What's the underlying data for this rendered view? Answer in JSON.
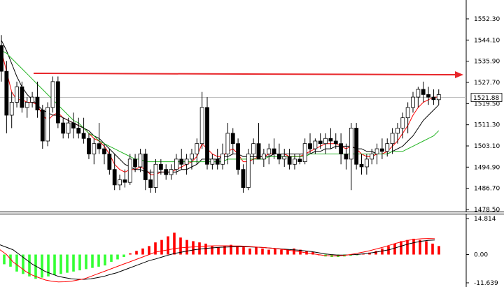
{
  "price_chart": {
    "current_price": "1521.88",
    "price_axis_ticks": [
      "1552.30",
      "1544.10",
      "1535.90",
      "1527.70",
      "1519.50",
      "1511.30",
      "1503.10",
      "1494.90",
      "1486.70",
      "1478.50"
    ],
    "resistance_arrow_color": "#e8262a",
    "colors": {
      "background": "#ffffff",
      "candle_outline": "#000000",
      "candle_up_fill": "#ffffff",
      "candle_down_fill": "#000000",
      "ma_fast": "#ff0000",
      "ma_mid": "#000000",
      "ma_slow": "#22b422",
      "current_price_line": "#c0c0c0"
    }
  },
  "indicator": {
    "axis_ticks": [
      "14.814",
      "0.00",
      "-11.639"
    ],
    "colors": {
      "hist_negative": "#33ff33",
      "hist_positive": "#ff0000",
      "signal_line": "#000000",
      "main_line": "#ff0000"
    }
  },
  "chart_data": [
    {
      "type": "candlestick",
      "title": "",
      "ylim": [
        1478.5,
        1556
      ],
      "ytick_labels": [
        "1552.30",
        "1544.10",
        "1535.90",
        "1527.70",
        "1519.50",
        "1511.30",
        "1503.10",
        "1494.90",
        "1486.70",
        "1478.50"
      ],
      "series": [
        {
          "kind": "ohlc",
          "values": [
            [
              1542,
              1546,
              1528,
              1532
            ],
            [
              1532,
              1536,
              1508,
              1515
            ],
            [
              1515,
              1524,
              1510,
              1520
            ],
            [
              1520,
              1528,
              1518,
              1526
            ],
            [
              1526,
              1528,
              1516,
              1518
            ],
            [
              1518,
              1522,
              1514,
              1520
            ],
            [
              1520,
              1524,
              1518,
              1522
            ],
            [
              1522,
              1528,
              1514,
              1517
            ],
            [
              1517,
              1519,
              1502,
              1505
            ],
            [
              1505,
              1520,
              1503,
              1518
            ],
            [
              1518,
              1530,
              1516,
              1528
            ],
            [
              1528,
              1530,
              1510,
              1512
            ],
            [
              1512,
              1514,
              1506,
              1508
            ],
            [
              1508,
              1514,
              1506,
              1512
            ],
            [
              1512,
              1516,
              1506,
              1510
            ],
            [
              1510,
              1514,
              1506,
              1508
            ],
            [
              1508,
              1514,
              1504,
              1506
            ],
            [
              1506,
              1508,
              1498,
              1500
            ],
            [
              1500,
              1506,
              1496,
              1504
            ],
            [
              1504,
              1512,
              1500,
              1502
            ],
            [
              1502,
              1504,
              1496,
              1500
            ],
            [
              1500,
              1502,
              1492,
              1494
            ],
            [
              1494,
              1500,
              1486,
              1488
            ],
            [
              1488,
              1492,
              1486,
              1490
            ],
            [
              1490,
              1494,
              1487,
              1489
            ],
            [
              1489,
              1500,
              1488,
              1498
            ],
            [
              1498,
              1500,
              1493,
              1495
            ],
            [
              1495,
              1502,
              1493,
              1500
            ],
            [
              1500,
              1502,
              1486,
              1490
            ],
            [
              1490,
              1494,
              1485,
              1487
            ],
            [
              1487,
              1498,
              1485,
              1496
            ],
            [
              1496,
              1498,
              1492,
              1494
            ],
            [
              1494,
              1496,
              1490,
              1492
            ],
            [
              1492,
              1496,
              1490,
              1494
            ],
            [
              1494,
              1500,
              1492,
              1498
            ],
            [
              1498,
              1502,
              1494,
              1496
            ],
            [
              1496,
              1500,
              1492,
              1498
            ],
            [
              1498,
              1502,
              1494,
              1500
            ],
            [
              1500,
              1506,
              1496,
              1504
            ],
            [
              1504,
              1524,
              1502,
              1518
            ],
            [
              1518,
              1522,
              1494,
              1496
            ],
            [
              1496,
              1500,
              1494,
              1498
            ],
            [
              1498,
              1502,
              1494,
              1496
            ],
            [
              1496,
              1504,
              1494,
              1500
            ],
            [
              1500,
              1512,
              1496,
              1508
            ],
            [
              1508,
              1510,
              1500,
              1504
            ],
            [
              1504,
              1506,
              1492,
              1494
            ],
            [
              1494,
              1496,
              1485,
              1487
            ],
            [
              1487,
              1502,
              1486,
              1500
            ],
            [
              1500,
              1506,
              1496,
              1504
            ],
            [
              1504,
              1512,
              1500,
              1498
            ],
            [
              1498,
              1502,
              1495,
              1500
            ],
            [
              1500,
              1504,
              1496,
              1502
            ],
            [
              1502,
              1506,
              1498,
              1500
            ],
            [
              1500,
              1504,
              1496,
              1498
            ],
            [
              1498,
              1502,
              1495,
              1499
            ],
            [
              1499,
              1502,
              1494,
              1496
            ],
            [
              1496,
              1500,
              1494,
              1498
            ],
            [
              1498,
              1500,
              1496,
              1497
            ],
            [
              1497,
              1506,
              1496,
              1504
            ],
            [
              1504,
              1508,
              1500,
              1502
            ],
            [
              1502,
              1506,
              1500,
              1505
            ],
            [
              1505,
              1508,
              1502,
              1504
            ],
            [
              1504,
              1508,
              1500,
              1506
            ],
            [
              1506,
              1510,
              1502,
              1505
            ],
            [
              1505,
              1508,
              1502,
              1504
            ],
            [
              1504,
              1508,
              1496,
              1500
            ],
            [
              1500,
              1504,
              1494,
              1498
            ],
            [
              1498,
              1512,
              1486,
              1510
            ],
            [
              1510,
              1512,
              1494,
              1496
            ],
            [
              1496,
              1500,
              1492,
              1495
            ],
            [
              1495,
              1500,
              1492,
              1498
            ],
            [
              1498,
              1502,
              1496,
              1500
            ],
            [
              1500,
              1504,
              1496,
              1502
            ],
            [
              1502,
              1506,
              1498,
              1501
            ],
            [
              1501,
              1506,
              1499,
              1504
            ],
            [
              1504,
              1510,
              1500,
              1508
            ],
            [
              1508,
              1512,
              1504,
              1510
            ],
            [
              1510,
              1516,
              1506,
              1514
            ],
            [
              1514,
              1520,
              1508,
              1518
            ],
            [
              1518,
              1524,
              1516,
              1522
            ],
            [
              1522,
              1526,
              1518,
              1525
            ],
            [
              1525,
              1528,
              1520,
              1523
            ],
            [
              1523,
              1526,
              1519,
              1522
            ],
            [
              1522,
              1525,
              1519,
              1521
            ],
            [
              1521,
              1525,
              1519,
              1523
            ]
          ]
        },
        {
          "name": "",
          "kind": "line",
          "color": "red",
          "values": [
            1540,
            1532,
            1524,
            1521,
            1521,
            1520,
            1520,
            1519,
            1515,
            1513,
            1515,
            1516,
            1514,
            1513,
            1512,
            1511,
            1510,
            1508,
            1506,
            1505,
            1503,
            1500,
            1496,
            1494,
            1493,
            1494,
            1494,
            1495,
            1494,
            1492,
            1492,
            1493,
            1493,
            1493,
            1494,
            1495,
            1496,
            1497,
            1499,
            1504,
            1502,
            1500,
            1499,
            1499,
            1501,
            1502,
            1500,
            1497,
            1497,
            1498,
            1499,
            1499,
            1500,
            1500,
            1500,
            1500,
            1499,
            1499,
            1499,
            1500,
            1501,
            1502,
            1503,
            1504,
            1504,
            1504,
            1503,
            1502,
            1503,
            1502,
            1500,
            1499,
            1499,
            1500,
            1500,
            1501,
            1503,
            1505,
            1508,
            1511,
            1515,
            1518,
            1520,
            1521,
            1522,
            1522
          ]
        },
        {
          "name": "",
          "kind": "line",
          "color": "black",
          "values": [
            1544,
            1540,
            1535,
            1530,
            1526,
            1523,
            1521,
            1519,
            1517,
            1516,
            1515,
            1515,
            1514,
            1513,
            1512,
            1511,
            1510,
            1509,
            1507,
            1506,
            1504,
            1502,
            1500,
            1498,
            1496,
            1495,
            1494,
            1494,
            1493,
            1493,
            1493,
            1493,
            1493,
            1493,
            1493,
            1494,
            1494,
            1495,
            1496,
            1498,
            1498,
            1498,
            1498,
            1499,
            1499,
            1500,
            1500,
            1499,
            1499,
            1499,
            1499,
            1499,
            1499,
            1500,
            1500,
            1500,
            1500,
            1500,
            1500,
            1500,
            1500,
            1501,
            1501,
            1502,
            1502,
            1503,
            1503,
            1503,
            1503,
            1502,
            1502,
            1501,
            1501,
            1500,
            1500,
            1500,
            1501,
            1502,
            1503,
            1505,
            1507,
            1510,
            1513,
            1515,
            1517,
            1519
          ]
        },
        {
          "name": "",
          "kind": "line",
          "color": "green",
          "values": [
            1540,
            1539,
            1537,
            1535,
            1533,
            1531,
            1529,
            1527,
            1525,
            1523,
            1521,
            1519,
            1517,
            1515,
            1513,
            1512,
            1510,
            1508,
            1507,
            1505,
            1504,
            1503,
            1502,
            1501,
            1500,
            1499,
            1498,
            1498,
            1497,
            1497,
            1497,
            1497,
            1497,
            1497,
            1497,
            1497,
            1497,
            1497,
            1497,
            1497,
            1497,
            1497,
            1497,
            1497,
            1498,
            1498,
            1498,
            1498,
            1498,
            1498,
            1498,
            1498,
            1499,
            1499,
            1499,
            1499,
            1499,
            1499,
            1499,
            1499,
            1500,
            1500,
            1500,
            1500,
            1500,
            1500,
            1500,
            1500,
            1500,
            1500,
            1500,
            1500,
            1500,
            1500,
            1500,
            1500,
            1501,
            1501,
            1501,
            1502,
            1503,
            1504,
            1505,
            1506,
            1507,
            1509
          ]
        }
      ],
      "annotations": [
        {
          "kind": "arrow",
          "from_value": 1527.7,
          "to_value": 1527.7,
          "color": "red"
        }
      ]
    },
    {
      "type": "bar",
      "title": "",
      "ylim": [
        -11.639,
        14.814
      ],
      "ytick_labels": [
        "14.814",
        "0.00",
        "-11.639"
      ],
      "series": [
        {
          "name": "",
          "kind": "histogram",
          "values": [
            -4,
            -5,
            -7,
            -8,
            -9,
            -10,
            -9.5,
            -9,
            -8.5,
            -8,
            -7.5,
            -7,
            -6.5,
            -6,
            -5.5,
            -5,
            -4.5,
            -3,
            -2,
            -1,
            0.5,
            1.5,
            2.5,
            3.5,
            5,
            6,
            7.5,
            9,
            7,
            6,
            5.5,
            5,
            4.5,
            3.5,
            3,
            3.5,
            4,
            3.5,
            3,
            2.5,
            3,
            2.5,
            2,
            2.5,
            2,
            2,
            2.5,
            2,
            1.5,
            1,
            0,
            -0.8,
            -1,
            -1,
            -0.8,
            -0.5,
            -0.3,
            0.3,
            0.8,
            1.5,
            2.5,
            3.5,
            4.5,
            5.5,
            6,
            6.5,
            6,
            5.5,
            4.5,
            3.5
          ]
        },
        {
          "name": "",
          "kind": "line",
          "color": "black",
          "values": [
            4,
            3,
            2,
            0,
            -2,
            -4,
            -5.5,
            -7,
            -8,
            -9,
            -9.5,
            -10,
            -10.2,
            -10.2,
            -10,
            -9.5,
            -9,
            -8.2,
            -7.5,
            -6.5,
            -5.5,
            -4.5,
            -3.5,
            -2.5,
            -1.8,
            -1,
            -0.2,
            0.5,
            1,
            1.5,
            2,
            2.3,
            2.6,
            2.8,
            3,
            3.1,
            3.2,
            3.2,
            3.2,
            3.1,
            3,
            2.8,
            2.6,
            2.4,
            2.2,
            2,
            1.8,
            1.5,
            1.2,
            0.8,
            0.3,
            0,
            -0.2,
            -0.2,
            -0.1,
            0,
            0.3,
            0.6,
            1,
            1.5,
            2,
            2.8,
            3.6,
            4.4,
            5,
            5.5,
            5.8,
            6
          ]
        },
        {
          "name": "",
          "kind": "line",
          "color": "red",
          "values": [
            2,
            0,
            -3,
            -5,
            -7,
            -8.5,
            -9.5,
            -10.5,
            -11,
            -11.3,
            -11.2,
            -11,
            -10.5,
            -10,
            -9,
            -8,
            -7,
            -6,
            -5,
            -4,
            -3,
            -2,
            -1,
            0,
            1,
            1.5,
            2,
            2.5,
            2.8,
            3,
            3.2,
            3.4,
            3.5,
            3.6,
            3.6,
            3.6,
            3.5,
            3.5,
            3.4,
            3.2,
            3,
            2.8,
            2.6,
            2.3,
            2,
            1.6,
            1.2,
            0.8,
            0.4,
            0,
            -0.4,
            -0.6,
            -0.6,
            -0.4,
            0,
            0.5,
            1,
            1.6,
            2.3,
            3,
            3.8,
            4.6,
            5.3,
            5.9,
            6.3,
            6.5,
            6.6,
            6.5
          ]
        }
      ]
    }
  ]
}
